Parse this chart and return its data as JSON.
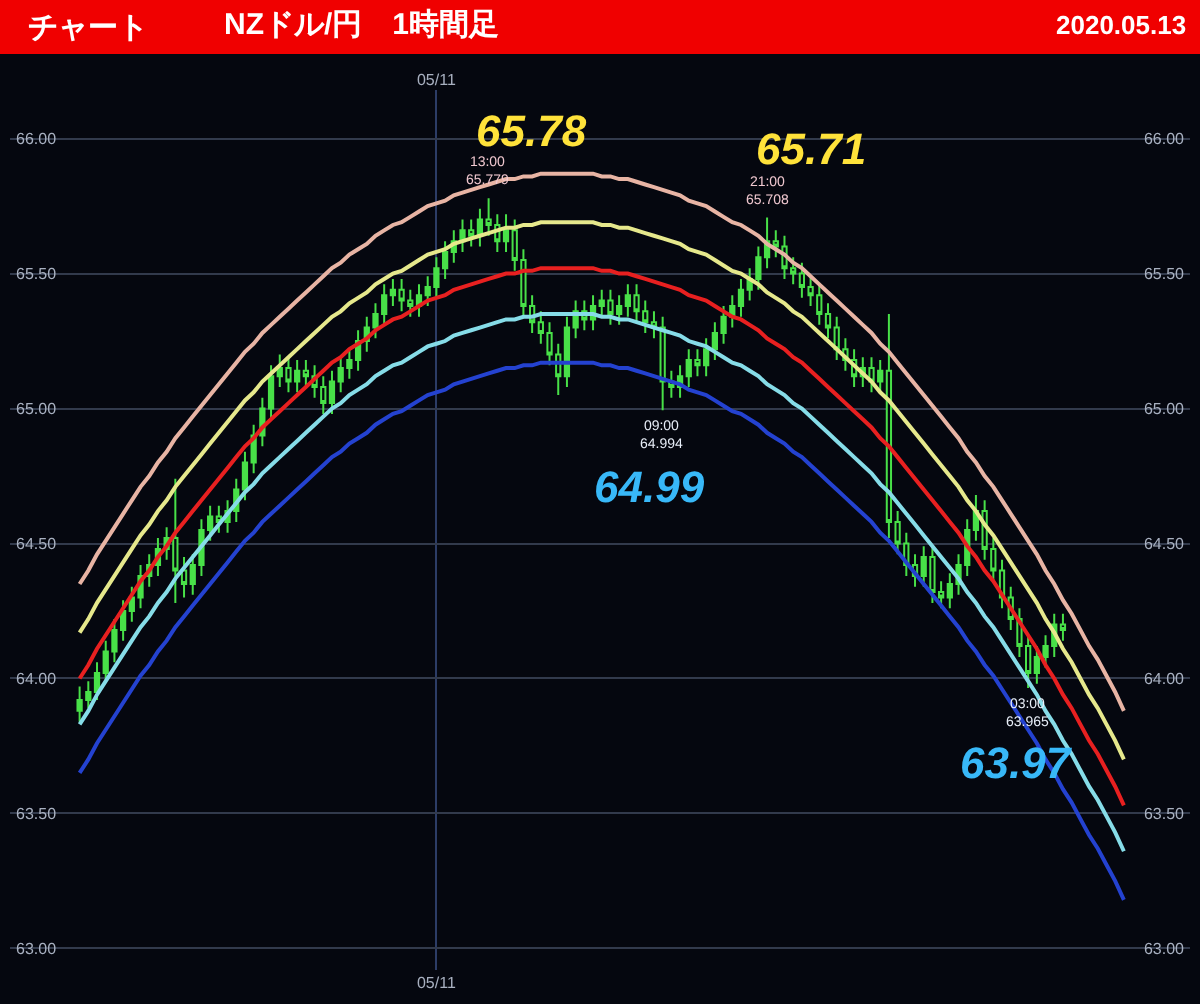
{
  "chart_data": {
    "type": "candlestick",
    "title": "チャート",
    "subtitle": "NZドル/円　1時間足",
    "annotations": [
      "2020.05.13",
      "65.78",
      {
        "text": "13:00\n65.779",
        "y": 65.779
      },
      "65.71",
      {
        "text": "21:00\n65.708",
        "y": 65.708
      },
      "64.99",
      {
        "text": "09:00\n64.994",
        "y": 64.994
      },
      "63.97",
      {
        "text": "03:00\n63.965",
        "y": 63.965
      }
    ],
    "categories": [
      null,
      null,
      null,
      null,
      null,
      null,
      null,
      null,
      null,
      null,
      null,
      null,
      null,
      null,
      null,
      null,
      null,
      null,
      null,
      null,
      null,
      null,
      null,
      null,
      null,
      null,
      null,
      null,
      null,
      null,
      null,
      null,
      null,
      null,
      null,
      null,
      null,
      null,
      null,
      null,
      null,
      "05/11",
      null,
      null,
      null,
      null,
      null,
      null,
      null,
      null,
      null,
      null,
      null,
      null,
      null,
      null,
      null,
      null,
      null,
      null,
      null,
      null,
      null,
      null,
      null,
      null,
      null,
      null,
      null,
      null,
      null,
      null,
      null,
      null,
      null,
      null,
      null,
      null,
      null,
      null,
      null,
      null,
      null,
      null,
      null,
      null,
      null,
      null,
      null,
      null,
      null,
      null,
      null,
      null,
      null,
      null,
      null,
      null,
      null,
      null,
      null,
      null,
      null,
      null,
      null,
      null,
      null,
      null,
      null,
      null,
      null,
      null,
      null,
      null,
      null,
      null,
      null,
      null,
      null,
      null,
      null
    ],
    "ylim": [
      62.92,
      66.18
    ],
    "yticks": [
      {
        "value": 63,
        "label": "63.00"
      },
      {
        "value": 63.5,
        "label": "63.50"
      },
      {
        "value": 64,
        "label": "64.00"
      },
      {
        "value": 64.5,
        "label": "64.50"
      },
      {
        "value": 65,
        "label": "65.00"
      },
      {
        "value": 65.5,
        "label": "65.50"
      },
      {
        "value": 66,
        "label": "66.00"
      }
    ],
    "y2lim": [
      62.92,
      66.18
    ],
    "y2ticks": [
      {
        "value": 63,
        "label": "63.00"
      },
      {
        "value": 63.5,
        "label": "63.50"
      },
      {
        "value": 64,
        "label": "64.00"
      },
      {
        "value": 64.5,
        "label": "64.50"
      },
      {
        "value": 65,
        "label": "65.00"
      },
      {
        "value": 65.5,
        "label": "65.50"
      },
      {
        "value": 66,
        "label": "66.00"
      }
    ],
    "grid": true,
    "series": [
      {
        "type": "line",
        "color": "#e8b4a4",
        "values": [
          64.35,
          64.4,
          64.46,
          64.51,
          64.56,
          64.61,
          64.66,
          64.71,
          64.75,
          64.8,
          64.84,
          64.89,
          64.93,
          64.97,
          65.01,
          65.05,
          65.09,
          65.13,
          65.17,
          65.21,
          65.24,
          65.28,
          65.31,
          65.34,
          65.37,
          65.4,
          65.43,
          65.46,
          65.49,
          65.52,
          65.54,
          65.57,
          65.59,
          65.61,
          65.64,
          65.66,
          65.68,
          65.69,
          65.71,
          65.73,
          65.75,
          65.76,
          65.77,
          65.79,
          65.8,
          65.81,
          65.82,
          65.83,
          65.84,
          65.85,
          65.85,
          65.86,
          65.86,
          65.87,
          65.87,
          65.87,
          65.87,
          65.87,
          65.87,
          65.87,
          65.86,
          65.86,
          65.85,
          65.85,
          65.84,
          65.83,
          65.82,
          65.81,
          65.8,
          65.79,
          65.77,
          65.76,
          65.75,
          65.73,
          65.71,
          65.69,
          65.68,
          65.66,
          65.64,
          65.61,
          65.59,
          65.57,
          65.54,
          65.52,
          65.49,
          65.46,
          65.43,
          65.4,
          65.37,
          65.34,
          65.31,
          65.28,
          65.24,
          65.21,
          65.17,
          65.13,
          65.09,
          65.05,
          65.01,
          64.97,
          64.93,
          64.89,
          64.84,
          64.8,
          64.75,
          64.71,
          64.66,
          64.61,
          64.56,
          64.51,
          64.46,
          64.4,
          64.35,
          64.29,
          64.24,
          64.18,
          64.12,
          64.07,
          64.01,
          63.95,
          63.88
        ]
      },
      {
        "type": "line",
        "color": "#e6e88c",
        "values": [
          64.17,
          64.22,
          64.28,
          64.33,
          64.38,
          64.43,
          64.48,
          64.53,
          64.57,
          64.62,
          64.66,
          64.71,
          64.75,
          64.79,
          64.83,
          64.87,
          64.91,
          64.95,
          64.99,
          65.03,
          65.06,
          65.1,
          65.13,
          65.16,
          65.19,
          65.22,
          65.25,
          65.28,
          65.31,
          65.34,
          65.36,
          65.39,
          65.41,
          65.43,
          65.46,
          65.48,
          65.5,
          65.51,
          65.53,
          65.55,
          65.57,
          65.58,
          65.59,
          65.61,
          65.62,
          65.63,
          65.64,
          65.65,
          65.66,
          65.67,
          65.67,
          65.68,
          65.68,
          65.69,
          65.69,
          65.69,
          65.69,
          65.69,
          65.69,
          65.69,
          65.68,
          65.68,
          65.67,
          65.67,
          65.66,
          65.65,
          65.64,
          65.63,
          65.62,
          65.61,
          65.59,
          65.58,
          65.57,
          65.55,
          65.53,
          65.51,
          65.5,
          65.48,
          65.46,
          65.43,
          65.41,
          65.39,
          65.36,
          65.34,
          65.31,
          65.28,
          65.25,
          65.22,
          65.19,
          65.16,
          65.13,
          65.1,
          65.06,
          65.03,
          64.99,
          64.95,
          64.91,
          64.87,
          64.83,
          64.79,
          64.75,
          64.71,
          64.66,
          64.62,
          64.57,
          64.53,
          64.48,
          64.43,
          64.38,
          64.33,
          64.28,
          64.22,
          64.17,
          64.11,
          64.06,
          64.0,
          63.94,
          63.89,
          63.83,
          63.77,
          63.7
        ]
      },
      {
        "type": "line",
        "color": "#e82020",
        "values": [
          64.0,
          64.05,
          64.11,
          64.16,
          64.21,
          64.26,
          64.31,
          64.36,
          64.4,
          64.45,
          64.49,
          64.54,
          64.58,
          64.62,
          64.66,
          64.7,
          64.74,
          64.78,
          64.82,
          64.86,
          64.89,
          64.93,
          64.96,
          64.99,
          65.02,
          65.05,
          65.08,
          65.11,
          65.14,
          65.17,
          65.19,
          65.22,
          65.24,
          65.26,
          65.29,
          65.31,
          65.33,
          65.34,
          65.36,
          65.38,
          65.4,
          65.41,
          65.42,
          65.44,
          65.45,
          65.46,
          65.47,
          65.48,
          65.49,
          65.5,
          65.5,
          65.51,
          65.51,
          65.52,
          65.52,
          65.52,
          65.52,
          65.52,
          65.52,
          65.52,
          65.51,
          65.51,
          65.5,
          65.5,
          65.49,
          65.48,
          65.47,
          65.46,
          65.45,
          65.44,
          65.42,
          65.41,
          65.4,
          65.38,
          65.36,
          65.34,
          65.33,
          65.31,
          65.29,
          65.26,
          65.24,
          65.22,
          65.19,
          65.17,
          65.14,
          65.11,
          65.08,
          65.05,
          65.02,
          64.99,
          64.96,
          64.93,
          64.89,
          64.86,
          64.82,
          64.78,
          64.74,
          64.7,
          64.66,
          64.62,
          64.58,
          64.54,
          64.49,
          64.45,
          64.4,
          64.36,
          64.31,
          64.26,
          64.21,
          64.16,
          64.11,
          64.05,
          64.0,
          63.94,
          63.89,
          63.83,
          63.77,
          63.72,
          63.66,
          63.6,
          63.53
        ]
      },
      {
        "type": "line",
        "color": "#86dce8",
        "values": [
          63.83,
          63.88,
          63.94,
          63.99,
          64.04,
          64.09,
          64.14,
          64.19,
          64.23,
          64.28,
          64.32,
          64.37,
          64.41,
          64.45,
          64.49,
          64.53,
          64.57,
          64.61,
          64.65,
          64.69,
          64.72,
          64.76,
          64.79,
          64.82,
          64.85,
          64.88,
          64.91,
          64.94,
          64.97,
          65.0,
          65.02,
          65.05,
          65.07,
          65.09,
          65.12,
          65.14,
          65.16,
          65.17,
          65.19,
          65.21,
          65.23,
          65.24,
          65.25,
          65.27,
          65.28,
          65.29,
          65.3,
          65.31,
          65.32,
          65.33,
          65.33,
          65.34,
          65.34,
          65.35,
          65.35,
          65.35,
          65.35,
          65.35,
          65.35,
          65.35,
          65.34,
          65.34,
          65.33,
          65.33,
          65.32,
          65.31,
          65.3,
          65.29,
          65.28,
          65.27,
          65.25,
          65.24,
          65.23,
          65.21,
          65.19,
          65.17,
          65.16,
          65.14,
          65.12,
          65.09,
          65.07,
          65.05,
          65.02,
          65.0,
          64.97,
          64.94,
          64.91,
          64.88,
          64.85,
          64.82,
          64.79,
          64.76,
          64.72,
          64.69,
          64.65,
          64.61,
          64.57,
          64.53,
          64.49,
          64.45,
          64.41,
          64.37,
          64.32,
          64.28,
          64.23,
          64.19,
          64.14,
          64.09,
          64.04,
          63.99,
          63.94,
          63.88,
          63.83,
          63.77,
          63.72,
          63.66,
          63.6,
          63.55,
          63.49,
          63.43,
          63.36
        ]
      },
      {
        "type": "line",
        "color": "#2442d0",
        "values": [
          63.65,
          63.7,
          63.76,
          63.81,
          63.86,
          63.91,
          63.96,
          64.01,
          64.05,
          64.1,
          64.14,
          64.19,
          64.23,
          64.27,
          64.31,
          64.35,
          64.39,
          64.43,
          64.47,
          64.51,
          64.54,
          64.58,
          64.61,
          64.64,
          64.67,
          64.7,
          64.73,
          64.76,
          64.79,
          64.82,
          64.84,
          64.87,
          64.89,
          64.91,
          64.94,
          64.96,
          64.98,
          64.99,
          65.01,
          65.03,
          65.05,
          65.06,
          65.07,
          65.09,
          65.1,
          65.11,
          65.12,
          65.13,
          65.14,
          65.15,
          65.15,
          65.16,
          65.16,
          65.17,
          65.17,
          65.17,
          65.17,
          65.17,
          65.17,
          65.17,
          65.16,
          65.16,
          65.15,
          65.15,
          65.14,
          65.13,
          65.12,
          65.11,
          65.1,
          65.09,
          65.07,
          65.06,
          65.05,
          65.03,
          65.01,
          64.99,
          64.98,
          64.96,
          64.94,
          64.91,
          64.89,
          64.87,
          64.84,
          64.82,
          64.79,
          64.76,
          64.73,
          64.7,
          64.67,
          64.64,
          64.61,
          64.58,
          64.54,
          64.51,
          64.47,
          64.43,
          64.39,
          64.35,
          64.31,
          64.27,
          64.23,
          64.19,
          64.14,
          64.1,
          64.05,
          64.01,
          63.96,
          63.91,
          63.86,
          63.81,
          63.76,
          63.7,
          63.65,
          63.59,
          63.54,
          63.48,
          63.42,
          63.37,
          63.31,
          63.25,
          63.18
        ]
      },
      {
        "color": "#48e048",
        "ohlc": [
          [
            63.88,
            63.97,
            63.84,
            63.92
          ],
          [
            63.92,
            63.99,
            63.89,
            63.95
          ],
          [
            63.95,
            64.06,
            63.92,
            64.02
          ],
          [
            64.02,
            64.14,
            63.99,
            64.1
          ],
          [
            64.1,
            64.22,
            64.06,
            64.18
          ],
          [
            64.18,
            64.29,
            64.14,
            64.25
          ],
          [
            64.25,
            64.34,
            64.21,
            64.3
          ],
          [
            64.3,
            64.42,
            64.26,
            64.38
          ],
          [
            64.38,
            64.46,
            64.34,
            64.42
          ],
          [
            64.42,
            64.52,
            64.38,
            64.48
          ],
          [
            64.48,
            64.56,
            64.44,
            64.52
          ],
          [
            64.52,
            64.74,
            64.28,
            64.4
          ],
          [
            64.4,
            64.45,
            64.3,
            64.35
          ],
          [
            64.35,
            64.46,
            64.31,
            64.42
          ],
          [
            64.42,
            64.59,
            64.38,
            64.55
          ],
          [
            64.55,
            64.64,
            64.51,
            64.6
          ],
          [
            64.6,
            64.64,
            64.54,
            64.58
          ],
          [
            64.58,
            64.66,
            64.54,
            64.62
          ],
          [
            64.62,
            64.74,
            64.58,
            64.7
          ],
          [
            64.7,
            64.84,
            64.66,
            64.8
          ],
          [
            64.8,
            64.94,
            64.76,
            64.9
          ],
          [
            64.9,
            65.04,
            64.86,
            65.0
          ],
          [
            65.0,
            65.16,
            64.96,
            65.12
          ],
          [
            65.12,
            65.2,
            65.08,
            65.15
          ],
          [
            65.15,
            65.19,
            65.06,
            65.1
          ],
          [
            65.1,
            65.18,
            65.06,
            65.14
          ],
          [
            65.14,
            65.18,
            65.08,
            65.12
          ],
          [
            65.12,
            65.16,
            65.04,
            65.08
          ],
          [
            65.08,
            65.12,
            64.98,
            65.02
          ],
          [
            65.02,
            65.14,
            64.98,
            65.1
          ],
          [
            65.1,
            65.19,
            65.06,
            65.15
          ],
          [
            65.15,
            65.22,
            65.11,
            65.18
          ],
          [
            65.18,
            65.29,
            65.14,
            65.25
          ],
          [
            65.25,
            65.34,
            65.21,
            65.3
          ],
          [
            65.3,
            65.39,
            65.26,
            65.35
          ],
          [
            65.35,
            65.46,
            65.31,
            65.42
          ],
          [
            65.42,
            65.48,
            65.38,
            65.44
          ],
          [
            65.44,
            65.48,
            65.36,
            65.4
          ],
          [
            65.4,
            65.44,
            65.34,
            65.38
          ],
          [
            65.38,
            65.46,
            65.34,
            65.42
          ],
          [
            65.42,
            65.49,
            65.38,
            65.45
          ],
          [
            65.45,
            65.56,
            65.41,
            65.52
          ],
          [
            65.52,
            65.62,
            65.48,
            65.58
          ],
          [
            65.58,
            65.66,
            65.54,
            65.62
          ],
          [
            65.62,
            65.7,
            65.58,
            65.66
          ],
          [
            65.66,
            65.7,
            65.6,
            65.64
          ],
          [
            65.64,
            65.74,
            65.6,
            65.7
          ],
          [
            65.7,
            65.779,
            65.64,
            65.68
          ],
          [
            65.68,
            65.72,
            65.58,
            65.62
          ],
          [
            65.62,
            65.72,
            65.58,
            65.66
          ],
          [
            65.66,
            65.7,
            65.51,
            65.55
          ],
          [
            65.55,
            65.59,
            65.34,
            65.38
          ],
          [
            65.38,
            65.42,
            65.28,
            65.32
          ],
          [
            65.32,
            65.36,
            65.24,
            65.28
          ],
          [
            65.28,
            65.32,
            65.16,
            65.2
          ],
          [
            65.2,
            65.24,
            65.05,
            65.12
          ],
          [
            65.12,
            65.34,
            65.08,
            65.3
          ],
          [
            65.3,
            65.4,
            65.26,
            65.36
          ],
          [
            65.36,
            65.4,
            65.29,
            65.33
          ],
          [
            65.33,
            65.42,
            65.29,
            65.38
          ],
          [
            65.38,
            65.44,
            65.34,
            65.4
          ],
          [
            65.4,
            65.44,
            65.31,
            65.35
          ],
          [
            65.35,
            65.42,
            65.31,
            65.38
          ],
          [
            65.38,
            65.46,
            65.34,
            65.42
          ],
          [
            65.42,
            65.46,
            65.32,
            65.36
          ],
          [
            65.36,
            65.4,
            65.28,
            65.32
          ],
          [
            65.32,
            65.36,
            65.26,
            65.3
          ],
          [
            65.3,
            65.34,
            64.994,
            65.1
          ],
          [
            65.1,
            65.14,
            65.04,
            65.08
          ],
          [
            65.08,
            65.16,
            65.04,
            65.12
          ],
          [
            65.12,
            65.22,
            65.08,
            65.18
          ],
          [
            65.18,
            65.22,
            65.12,
            65.16
          ],
          [
            65.16,
            65.26,
            65.12,
            65.22
          ],
          [
            65.22,
            65.32,
            65.18,
            65.28
          ],
          [
            65.28,
            65.38,
            65.24,
            65.34
          ],
          [
            65.34,
            65.42,
            65.3,
            65.38
          ],
          [
            65.38,
            65.48,
            65.34,
            65.44
          ],
          [
            65.44,
            65.52,
            65.4,
            65.48
          ],
          [
            65.48,
            65.6,
            65.44,
            65.56
          ],
          [
            65.56,
            65.708,
            65.52,
            65.62
          ],
          [
            65.62,
            65.66,
            65.56,
            65.6
          ],
          [
            65.6,
            65.64,
            65.48,
            65.52
          ],
          [
            65.52,
            65.56,
            65.46,
            65.5
          ],
          [
            65.5,
            65.54,
            65.41,
            65.45
          ],
          [
            65.45,
            65.49,
            65.38,
            65.42
          ],
          [
            65.42,
            65.46,
            65.31,
            65.35
          ],
          [
            65.35,
            65.39,
            65.26,
            65.3
          ],
          [
            65.3,
            65.34,
            65.18,
            65.22
          ],
          [
            65.22,
            65.26,
            65.14,
            65.18
          ],
          [
            65.18,
            65.22,
            65.08,
            65.12
          ],
          [
            65.12,
            65.19,
            65.08,
            65.15
          ],
          [
            65.15,
            65.19,
            65.06,
            65.1
          ],
          [
            65.1,
            65.18,
            65.06,
            65.14
          ],
          [
            65.14,
            65.35,
            64.52,
            64.58
          ],
          [
            64.58,
            64.62,
            64.46,
            64.5
          ],
          [
            64.5,
            64.54,
            64.38,
            64.42
          ],
          [
            64.42,
            64.46,
            64.34,
            64.38
          ],
          [
            64.38,
            64.49,
            64.34,
            64.45
          ],
          [
            64.45,
            64.49,
            64.28,
            64.32
          ],
          [
            64.32,
            64.36,
            64.26,
            64.3
          ],
          [
            64.3,
            64.39,
            64.26,
            64.35
          ],
          [
            64.35,
            64.46,
            64.31,
            64.42
          ],
          [
            64.42,
            64.59,
            64.38,
            64.55
          ],
          [
            64.55,
            64.68,
            64.51,
            64.62
          ],
          [
            64.62,
            64.66,
            64.44,
            64.48
          ],
          [
            64.48,
            64.52,
            64.36,
            64.4
          ],
          [
            64.4,
            64.44,
            64.26,
            64.3
          ],
          [
            64.3,
            64.34,
            64.18,
            64.22
          ],
          [
            64.22,
            64.26,
            64.08,
            64.12
          ],
          [
            64.12,
            64.16,
            63.965,
            64.02
          ],
          [
            64.02,
            64.12,
            63.98,
            64.08
          ],
          [
            64.08,
            64.16,
            64.04,
            64.12
          ],
          [
            64.12,
            64.24,
            64.08,
            64.2
          ],
          [
            64.2,
            64.24,
            64.14,
            64.18
          ],
          null,
          null,
          null,
          null,
          null,
          null,
          null
        ]
      }
    ]
  }
}
